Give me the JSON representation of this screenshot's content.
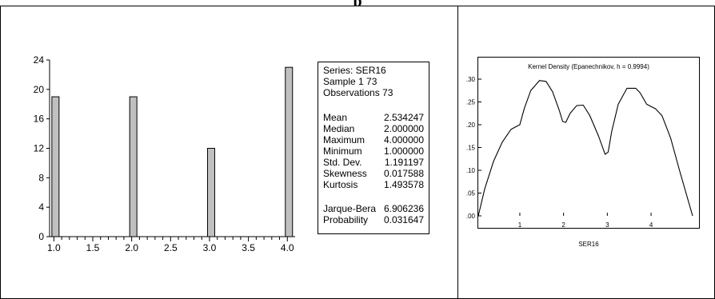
{
  "header": {
    "title": "p"
  },
  "histogram": {
    "type": "bar",
    "x": [
      1,
      2,
      3,
      4
    ],
    "values": [
      19,
      19,
      12,
      23
    ],
    "xlim": [
      1.0,
      4.0
    ],
    "ylim": [
      0,
      24
    ],
    "xticks": [
      "1.0",
      "1.5",
      "2.0",
      "2.5",
      "3.0",
      "3.5",
      "4.0"
    ],
    "yticks": [
      "0",
      "4",
      "8",
      "12",
      "16",
      "20",
      "24"
    ]
  },
  "stats": {
    "series": "Series: SER16",
    "sample": "Sample 1 73",
    "observations": "Observations 73",
    "rows": [
      {
        "label": "Mean",
        "value": "2.534247"
      },
      {
        "label": "Median",
        "value": "2.000000"
      },
      {
        "label": "Maximum",
        "value": "4.000000"
      },
      {
        "label": "Minimum",
        "value": "1.000000"
      },
      {
        "label": "Std. Dev.",
        "value": "1.191197"
      },
      {
        "label": "Skewness",
        "value": "0.017588"
      },
      {
        "label": "Kurtosis",
        "value": "1.493578"
      }
    ],
    "jb": [
      {
        "label": "Jarque-Bera",
        "value": "6.906236"
      },
      {
        "label": "Probability",
        "value": "0.031647"
      }
    ]
  },
  "chart_data": [
    {
      "type": "bar",
      "categories": [
        "1",
        "2",
        "3",
        "4"
      ],
      "values": [
        19,
        19,
        12,
        23
      ],
      "ylim": [
        0,
        24
      ],
      "xlim": [
        1.0,
        4.0
      ]
    },
    {
      "type": "line",
      "title": "Kernel Density (Epanechnikov, h = 0.9994)",
      "xlabel": "SER16",
      "ylabel": "",
      "xlim": [
        0.05,
        4.95
      ],
      "ylim": [
        0,
        0.3
      ],
      "xticks": [
        "1",
        "2",
        "3",
        "4"
      ],
      "yticks": [
        ".00",
        ".05",
        ".10",
        ".15",
        ".20",
        ".25",
        ".30"
      ],
      "x": [
        0.05,
        0.2,
        0.4,
        0.6,
        0.8,
        1.0,
        1.1,
        1.25,
        1.45,
        1.6,
        1.75,
        1.9,
        1.98,
        2.05,
        2.15,
        2.3,
        2.45,
        2.6,
        2.8,
        2.95,
        3.02,
        3.1,
        3.25,
        3.45,
        3.65,
        3.75,
        3.9,
        4.0,
        4.1,
        4.25,
        4.45,
        4.65,
        4.8,
        4.95
      ],
      "y": [
        0.0,
        0.06,
        0.12,
        0.162,
        0.19,
        0.2,
        0.235,
        0.275,
        0.297,
        0.295,
        0.272,
        0.232,
        0.207,
        0.205,
        0.225,
        0.242,
        0.243,
        0.22,
        0.175,
        0.135,
        0.14,
        0.185,
        0.245,
        0.28,
        0.28,
        0.27,
        0.245,
        0.24,
        0.235,
        0.22,
        0.17,
        0.1,
        0.05,
        0.0
      ]
    }
  ]
}
